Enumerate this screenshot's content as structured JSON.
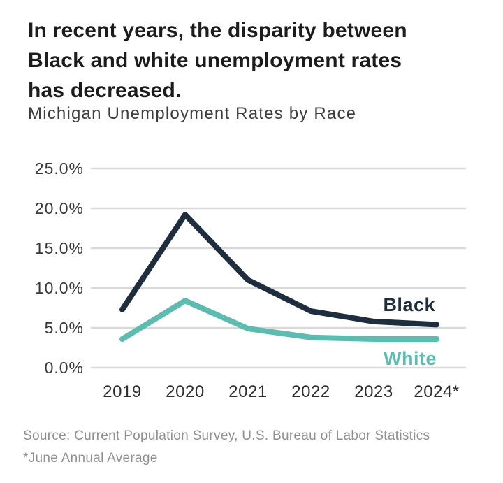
{
  "header": {
    "title_lines": [
      "In recent years, the disparity between",
      "Black and white unemployment rates",
      "has decreased."
    ],
    "subtitle": "Michigan Unemployment Rates by Race"
  },
  "chart_data": {
    "type": "line",
    "title": "Michigan Unemployment Rates by Race",
    "x_labels": [
      "2019",
      "2020",
      "2021",
      "2022",
      "2023",
      "2024*"
    ],
    "y_tick_labels": [
      "25.0%",
      "20.0%",
      "15.0%",
      "10.0%",
      "5.0%",
      "0.0%"
    ],
    "ylim": [
      0,
      25
    ],
    "grid": true,
    "legend_position": "inline-end-labels",
    "series": [
      {
        "name": "Black",
        "color": "#1e2e3e",
        "values": [
          7.3,
          19.2,
          11.0,
          7.1,
          5.8,
          5.4
        ]
      },
      {
        "name": "White",
        "color": "#5cbcb0",
        "values": [
          3.6,
          8.4,
          4.9,
          3.8,
          3.6,
          3.6
        ]
      }
    ]
  },
  "footer": {
    "source": "Source: Current Population Survey, U.S. Bureau of Labor Statistics",
    "note": "*June Annual Average"
  },
  "colors": {
    "title_text": "#1c1c1c",
    "subtitle_text": "#3d3d3d",
    "grid_line": "#d9d9d9",
    "y_tick_text": "#383838",
    "x_tick_text": "#2d2d2d",
    "footer_text": "#8f8f8f",
    "black_series": "#1e2e3e",
    "white_series": "#5cbcb0"
  }
}
